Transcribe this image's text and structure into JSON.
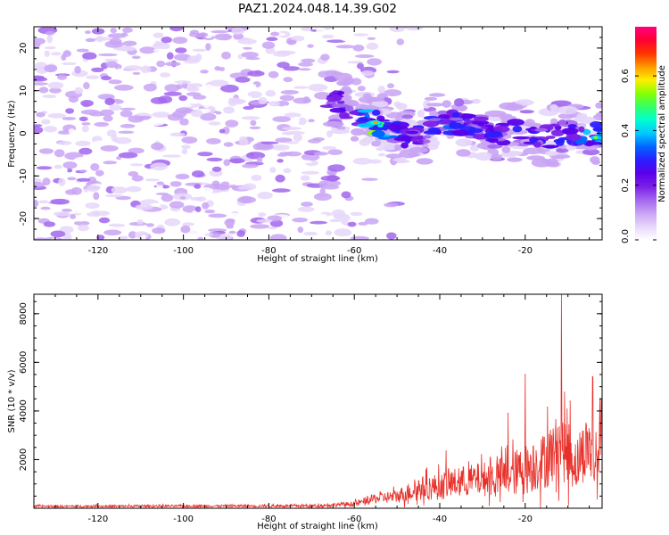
{
  "title": "PAZ1.2024.048.14.39.G02",
  "chart_data": [
    {
      "type": "heatmap",
      "xlabel": "Height of straight line (km)",
      "ylabel": "Frequency (Hz)",
      "xlim": [
        -135,
        -2
      ],
      "ylim": [
        -25,
        25
      ],
      "xticks": [
        -120,
        -100,
        -80,
        -60,
        -40,
        -20
      ],
      "yticks": [
        -20,
        -10,
        0,
        10,
        20
      ],
      "colorbar": {
        "label": "Normalized spectral amplitude",
        "range": [
          0,
          0.78
        ],
        "ticks": [
          0.0,
          0.2,
          0.4,
          0.6
        ]
      },
      "colormap": [
        "#ffffff",
        "#e6d6fa",
        "#c9a4f4",
        "#a266ee",
        "#7a1fe6",
        "#5a00ea",
        "#2a1fff",
        "#0066ff",
        "#00c8ff",
        "#00ffd0",
        "#33ff66",
        "#88ff00",
        "#ffee00",
        "#ff9900",
        "#ff3300",
        "#ff0033",
        "#ff0080"
      ],
      "ridge": {
        "x": [
          -66,
          -60,
          -55,
          -50,
          -45,
          -40,
          -35,
          -30,
          -25,
          -20,
          -15,
          -10,
          -5,
          -2
        ],
        "freq": [
          8.5,
          5,
          2.5,
          0,
          -1,
          3,
          2,
          1.5,
          0,
          0.5,
          -1,
          0.5,
          -1,
          0
        ],
        "amplitude": [
          0.2,
          0.28,
          0.5,
          0.3,
          0.26,
          0.3,
          0.28,
          0.25,
          0.28,
          0.25,
          0.3,
          0.28,
          0.35,
          0.4
        ]
      }
    },
    {
      "type": "line",
      "xlabel": "Height of straight line (km)",
      "ylabel": "SNR (10 * v/v)",
      "xlim": [
        -135,
        -2
      ],
      "ylim": [
        0,
        8800
      ],
      "xticks": [
        -120,
        -100,
        -80,
        -60,
        -40,
        -20
      ],
      "yticks": [
        2000,
        4000,
        6000,
        8000
      ],
      "color": "#e8302a",
      "envelope": {
        "x": [
          -135,
          -70,
          -60,
          -55,
          -50,
          -45,
          -40,
          -35,
          -30,
          -25,
          -20,
          -15,
          -12,
          -10,
          -8,
          -5,
          -4,
          -2
        ],
        "mean": [
          80,
          100,
          180,
          400,
          500,
          800,
          900,
          1100,
          1200,
          1300,
          1600,
          2000,
          2600,
          2300,
          1800,
          2700,
          1500,
          3000
        ],
        "spread": [
          60,
          80,
          150,
          300,
          400,
          700,
          800,
          900,
          1000,
          1200,
          1500,
          1700,
          2000,
          2000,
          1500,
          2000,
          1500,
          1500
        ]
      },
      "peaks": [
        {
          "x": -38.5,
          "y": 2350
        },
        {
          "x": -24,
          "y": 3900
        },
        {
          "x": -20,
          "y": 5500
        },
        {
          "x": -14.8,
          "y": 4150
        },
        {
          "x": -11.5,
          "y": 8800
        },
        {
          "x": -9.5,
          "y": 4400
        },
        {
          "x": -4.2,
          "y": 5400
        },
        {
          "x": -2.5,
          "y": 4500
        }
      ]
    }
  ]
}
